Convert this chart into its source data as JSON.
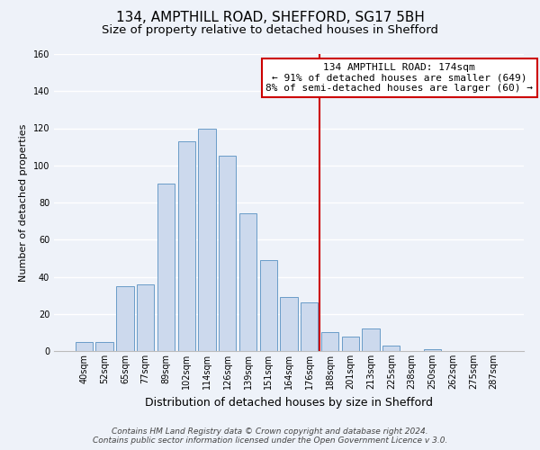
{
  "title": "134, AMPTHILL ROAD, SHEFFORD, SG17 5BH",
  "subtitle": "Size of property relative to detached houses in Shefford",
  "xlabel": "Distribution of detached houses by size in Shefford",
  "ylabel": "Number of detached properties",
  "bar_labels": [
    "40sqm",
    "52sqm",
    "65sqm",
    "77sqm",
    "89sqm",
    "102sqm",
    "114sqm",
    "126sqm",
    "139sqm",
    "151sqm",
    "164sqm",
    "176sqm",
    "188sqm",
    "201sqm",
    "213sqm",
    "225sqm",
    "238sqm",
    "250sqm",
    "262sqm",
    "275sqm",
    "287sqm"
  ],
  "bar_values": [
    5,
    5,
    35,
    36,
    90,
    113,
    120,
    105,
    74,
    49,
    29,
    26,
    10,
    8,
    12,
    3,
    0,
    1,
    0,
    0,
    0
  ],
  "bar_color": "#ccd9ed",
  "bar_edge_color": "#6a9cc8",
  "vline_x_index": 11.5,
  "vline_color": "#cc0000",
  "annotation_title": "134 AMPTHILL ROAD: 174sqm",
  "annotation_line1": "← 91% of detached houses are smaller (649)",
  "annotation_line2": "8% of semi-detached houses are larger (60) →",
  "annotation_box_color": "#ffffff",
  "annotation_box_edge_color": "#cc0000",
  "ylim": [
    0,
    160
  ],
  "yticks": [
    0,
    20,
    40,
    60,
    80,
    100,
    120,
    140,
    160
  ],
  "footer_line1": "Contains HM Land Registry data © Crown copyright and database right 2024.",
  "footer_line2": "Contains public sector information licensed under the Open Government Licence v 3.0.",
  "background_color": "#eef2f9",
  "grid_color": "#ffffff",
  "title_fontsize": 11,
  "subtitle_fontsize": 9.5,
  "xlabel_fontsize": 9,
  "ylabel_fontsize": 8,
  "tick_fontsize": 7,
  "footer_fontsize": 6.5,
  "ann_fontsize": 8
}
